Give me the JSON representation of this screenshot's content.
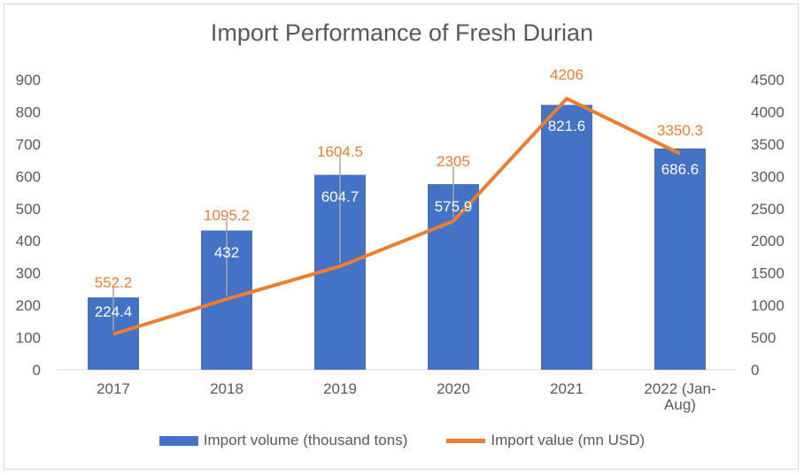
{
  "chart_data": {
    "type": "bar+line",
    "title": "Import Performance of Fresh Durian",
    "categories": [
      "2017",
      "2018",
      "2019",
      "2020",
      "2021",
      "2022 (Jan-Aug)"
    ],
    "series": [
      {
        "name": "Import volume (thousand tons)",
        "type": "bar",
        "axis": "left",
        "values": [
          224.4,
          432,
          604.7,
          575.9,
          821.6,
          686.6
        ],
        "labels": [
          "224.4",
          "432",
          "604.7",
          "575.9",
          "821.6",
          "686.6"
        ],
        "color": "#4472C4"
      },
      {
        "name": "Import value (mn USD)",
        "type": "line",
        "axis": "right",
        "values": [
          552.2,
          1095.2,
          1604.5,
          2305,
          4206,
          3350.3
        ],
        "labels": [
          "552.2",
          "1095.2",
          "1604.5",
          "2305",
          "4206",
          "3350.3"
        ],
        "color": "#ED7D31"
      }
    ],
    "y_left": {
      "ylim": [
        0,
        900
      ],
      "ticks": [
        "0",
        "100",
        "200",
        "300",
        "400",
        "500",
        "600",
        "700",
        "800",
        "900"
      ]
    },
    "y_right": {
      "ylim": [
        0,
        4500
      ],
      "ticks": [
        "0",
        "500",
        "1000",
        "1500",
        "2000",
        "2500",
        "3000",
        "3500",
        "4000",
        "4500"
      ]
    },
    "grid": false,
    "legend": "bottom"
  }
}
